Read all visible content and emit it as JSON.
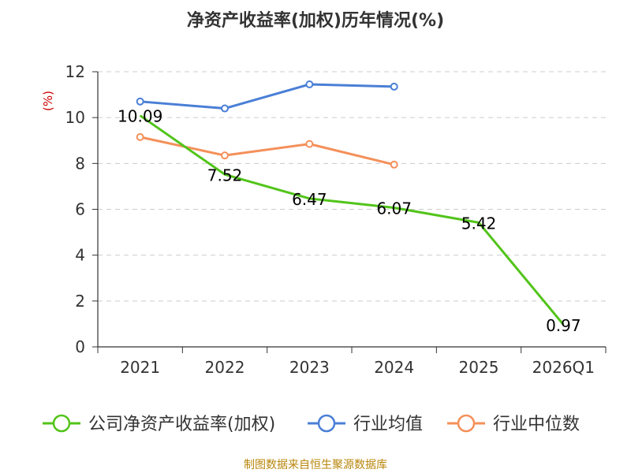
{
  "source": "制图数据来自恒生聚源数据库",
  "colors": {
    "axis": "#333333",
    "grid": "#cccccc"
  },
  "chart_data": {
    "type": "line",
    "title": "净资产收益率(加权)历年情况(%)",
    "ylabel": "(%)",
    "xlabel": "",
    "categories": [
      "2021",
      "2022",
      "2023",
      "2024",
      "2025",
      "2026Q1"
    ],
    "ylim": [
      0,
      12
    ],
    "yticks": [
      0,
      2,
      4,
      6,
      8,
      10,
      12
    ],
    "grid": true,
    "legend_position": "bottom",
    "series": [
      {
        "name": "公司净资产收益率(加权)",
        "color": "#52c41a",
        "values": [
          10.09,
          7.52,
          6.47,
          6.07,
          5.42,
          0.97
        ],
        "labels": [
          "10.09",
          "7.52",
          "6.47",
          "6.07",
          "5.42",
          "0.97"
        ],
        "show_markers": false
      },
      {
        "name": "行业均值",
        "color": "#4a7fd6",
        "values": [
          10.7,
          10.4,
          11.45,
          11.35,
          null,
          null
        ],
        "show_markers": true
      },
      {
        "name": "行业中位数",
        "color": "#f4905a",
        "values": [
          9.15,
          8.35,
          8.85,
          7.95,
          null,
          null
        ],
        "show_markers": true
      }
    ]
  }
}
